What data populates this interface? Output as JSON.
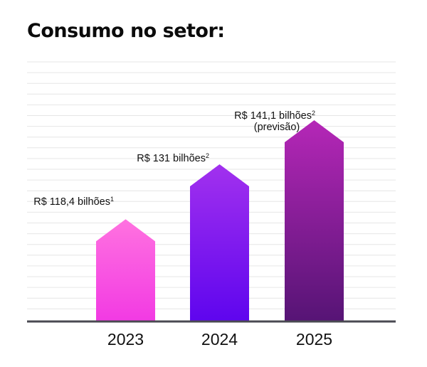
{
  "title": "Consumo no setor:",
  "colors": {
    "grid": "#e6e6e6",
    "baseline": "#4a4a52",
    "bars": [
      {
        "top": "#ff72e0",
        "bottom": "#f23ae3"
      },
      {
        "top": "#a231ee",
        "bottom": "#5e05ee"
      },
      {
        "top": "#b527b7",
        "bottom": "#561475"
      }
    ]
  },
  "chart_data": {
    "type": "bar",
    "categories": [
      "2023",
      "2024",
      "2025"
    ],
    "values": [
      118.4,
      131,
      141.1
    ],
    "unit": "R$ bilhões",
    "ylim": [
      100,
      146
    ],
    "grid": true,
    "labels": [
      {
        "text": "R$ 118,4 bilhões",
        "sup": "1",
        "note": ""
      },
      {
        "text": "R$ 131 bilhões",
        "sup": "2",
        "note": ""
      },
      {
        "text": "R$ 141,1 bilhões",
        "sup": "2",
        "note": "(previsão)"
      }
    ]
  }
}
